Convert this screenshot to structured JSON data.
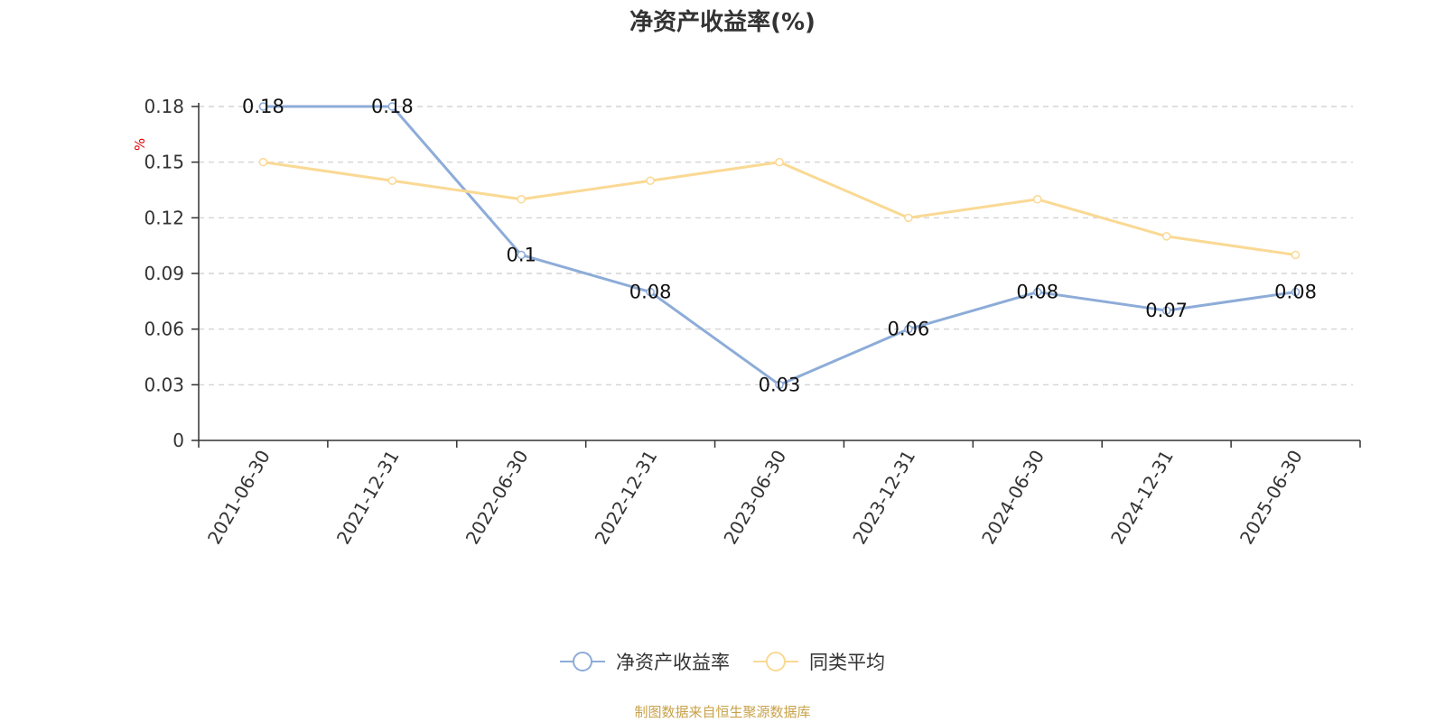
{
  "colors": {
    "series_main": "#8dacd8",
    "series_avg": "#fad994",
    "grid": "#cccccc",
    "axis": "#333333",
    "unit": "#e00000",
    "source": "#c8a24a"
  },
  "chart_data": {
    "type": "line",
    "title": "净资产收益率(%)",
    "ylabel": "%",
    "xlabel": "",
    "ylim": [
      0,
      0.18
    ],
    "yticks": [
      0,
      0.03,
      0.06,
      0.09,
      0.12,
      0.15,
      0.18
    ],
    "ytick_labels": [
      "0",
      "0.03",
      "0.06",
      "0.09",
      "0.12",
      "0.15",
      "0.18"
    ],
    "grid": true,
    "legend_position": "bottom-center",
    "categories": [
      "2021-06-30",
      "2021-12-31",
      "2022-06-30",
      "2022-12-31",
      "2023-06-30",
      "2023-12-31",
      "2024-06-30",
      "2024-12-31",
      "2025-06-30"
    ],
    "series": [
      {
        "name": "净资产收益率",
        "values": [
          0.18,
          0.18,
          0.1,
          0.08,
          0.03,
          0.06,
          0.08,
          0.07,
          0.08
        ],
        "data_labels": [
          "0.18",
          "0.18",
          "0.1",
          "0.08",
          "0.03",
          "0.06",
          "0.08",
          "0.07",
          "0.08"
        ]
      },
      {
        "name": "同类平均",
        "values": [
          0.15,
          0.14,
          0.13,
          0.14,
          0.15,
          0.12,
          0.13,
          0.11,
          0.1
        ]
      }
    ]
  },
  "source_note": "制图数据来自恒生聚源数据库"
}
